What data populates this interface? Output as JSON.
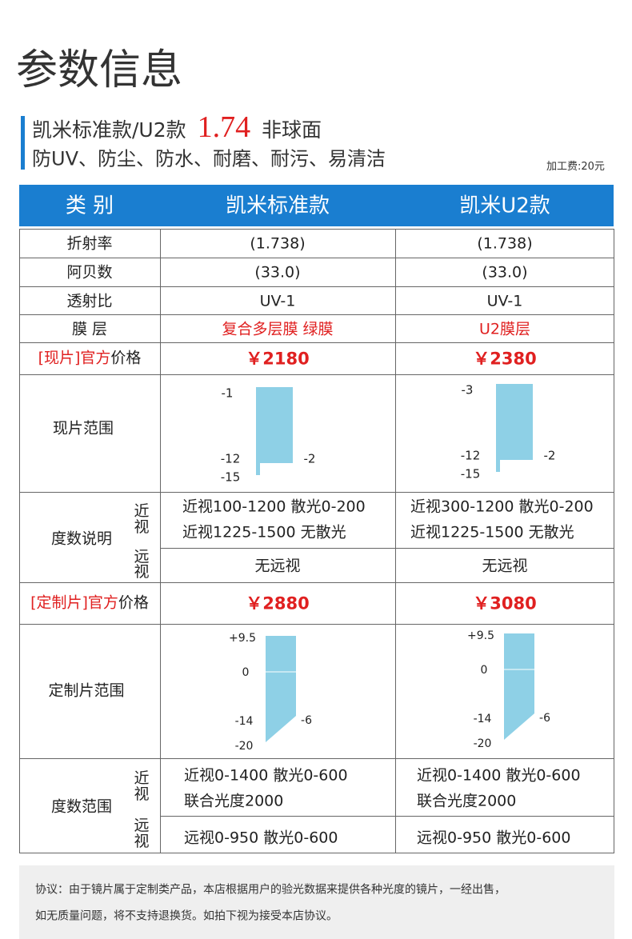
{
  "header": {
    "title": "参数信息",
    "model": "凯米标准款/U2款",
    "index": "1.74",
    "design": "非球面",
    "features": "防UV、防尘、防水、耐磨、耐污、易清洁",
    "fee": "加工费:20元"
  },
  "table": {
    "columns": [
      "类 别",
      "凯米标准款",
      "凯米U2款"
    ],
    "rows": [
      [
        "折射率",
        "(1.738)",
        "(1.738)"
      ],
      [
        "阿贝数",
        "(33.0)",
        "(33.0)"
      ],
      [
        "透射比",
        "UV-1",
        "UV-1"
      ],
      [
        "膜 层",
        "复合多层膜 绿膜",
        "U2膜层"
      ]
    ],
    "stock_price": {
      "tag": "[现片]官方",
      "label": "价格",
      "values": [
        "￥2180",
        "￥2380"
      ]
    },
    "stock_range": {
      "label": "现片范围",
      "charts": [
        {
          "top": "-1",
          "mid": "-12",
          "side": "-2",
          "bottom": "-15"
        },
        {
          "top": "-3",
          "mid": "-12",
          "side": "-2",
          "bottom": "-15"
        }
      ]
    },
    "power_note": {
      "label": "度数说明",
      "near": "近视",
      "far": "远视",
      "near_lines": [
        [
          "近视100-1200 散光0-200",
          "近视1225-1500  无散光"
        ],
        [
          "近视300-1200 散光0-200",
          "近视1225-1500  无散光"
        ]
      ],
      "far_lines": [
        "无远视",
        "无远视"
      ]
    },
    "custom_price": {
      "tag": "[定制片]官方",
      "label": "价格",
      "values": [
        "￥2880",
        "￥3080"
      ]
    },
    "custom_range": {
      "label": "定制片范围",
      "charts": [
        {
          "top": "+9.5",
          "zero": "0",
          "mid": "-14",
          "side": "-6",
          "bottom": "-20"
        },
        {
          "top": "+9.5",
          "zero": "0",
          "mid": "-14",
          "side": "-6",
          "bottom": "-20"
        }
      ]
    },
    "power_range": {
      "label": "度数范围",
      "near": "近视",
      "far": "远视",
      "near_lines": [
        [
          "近视0-1400  散光0-600",
          "联合光度2000"
        ],
        [
          "近视0-1400  散光0-600",
          "联合光度2000"
        ]
      ],
      "far_lines": [
        "远视0-950  散光0-600",
        "远视0-950  散光0-600"
      ]
    }
  },
  "footer": {
    "lines": [
      "协议：由于镜片属于定制类产品，本店根据用户的验光数据来提供各种光度的镜片，一经出售，",
      "如无质量问题，将不支持退换货。如拍下视为接受本店协议。"
    ]
  }
}
